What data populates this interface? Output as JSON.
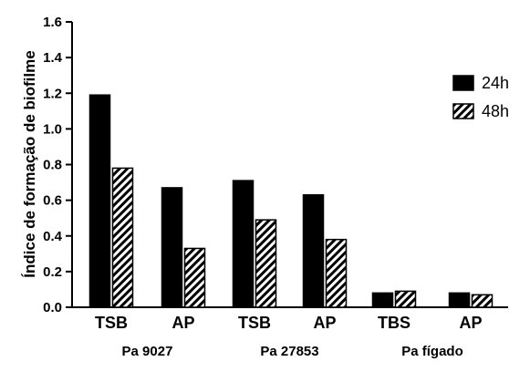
{
  "chart_data": {
    "type": "bar",
    "ylabel": "Índice de formação de biofilme",
    "xlabel": "",
    "ylim": [
      0,
      1.6
    ],
    "yticks": [
      "0.0",
      "0.2",
      "0.4",
      "0.6",
      "0.8",
      "1.0",
      "1.2",
      "1.4",
      "1.6"
    ],
    "categories": [
      "TSB",
      "AP",
      "TSB",
      "AP",
      "TBS",
      "AP"
    ],
    "groups": [
      {
        "label": "Pa 9027",
        "span": [
          0,
          1
        ]
      },
      {
        "label": "Pa 27853",
        "span": [
          2,
          3
        ]
      },
      {
        "label": "Pa fígado",
        "span": [
          4,
          5
        ]
      }
    ],
    "series": [
      {
        "name": "24h",
        "fill": "solid",
        "color": "#000000",
        "values": [
          1.19,
          0.67,
          0.71,
          0.63,
          0.08,
          0.08
        ]
      },
      {
        "name": "48h",
        "fill": "hatched",
        "color": "#000000",
        "values": [
          0.78,
          0.33,
          0.49,
          0.38,
          0.09,
          0.07
        ]
      }
    ],
    "grid": false,
    "legend_position": "right"
  }
}
